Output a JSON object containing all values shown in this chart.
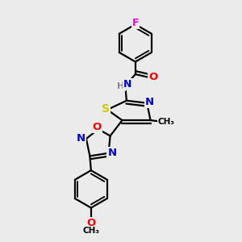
{
  "bg_color": "#ebebeb",
  "atom_colors": {
    "C": "#000000",
    "N": "#0000cc",
    "O": "#ff0000",
    "S": "#cccc00",
    "F": "#ee00ee",
    "H": "#888888"
  },
  "bond_color": "#000000",
  "bond_width": 1.6
}
